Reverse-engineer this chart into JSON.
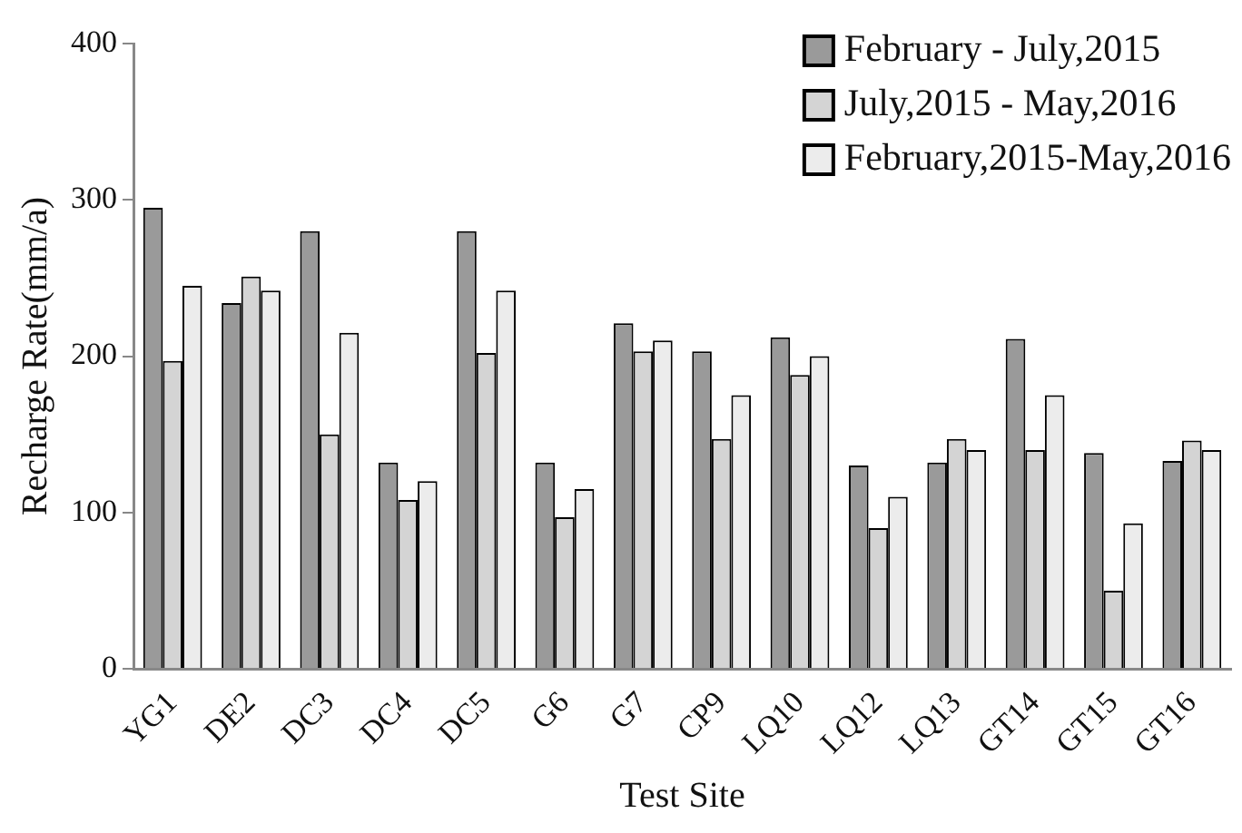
{
  "chart_data": {
    "type": "bar",
    "xlabel": "Test Site",
    "ylabel": "Recharge Rate(mm/a)",
    "categories": [
      "YG1",
      "DE2",
      "DC3",
      "DC4",
      "DC5",
      "G6",
      "G7",
      "CP9",
      "LQ10",
      "LQ12",
      "LQ13",
      "GT14",
      "GT15",
      "GT16"
    ],
    "series": [
      {
        "name": "February - July,2015",
        "color": "#9a9a9a",
        "values": [
          295,
          234,
          280,
          132,
          280,
          132,
          221,
          203,
          212,
          130,
          132,
          211,
          138,
          133
        ]
      },
      {
        "name": "July,2015 - May,2016",
        "color": "#d4d4d4",
        "values": [
          197,
          251,
          150,
          108,
          202,
          97,
          203,
          147,
          188,
          90,
          147,
          140,
          50,
          146
        ]
      },
      {
        "name": "February,2015-May,2016",
        "color": "#ececec",
        "values": [
          245,
          242,
          215,
          120,
          242,
          115,
          210,
          175,
          200,
          110,
          140,
          175,
          93,
          140
        ]
      }
    ],
    "ylim": [
      0,
      400
    ],
    "yticks": [
      0,
      100,
      200,
      300,
      400
    ],
    "grid": false,
    "legend": "top right"
  }
}
